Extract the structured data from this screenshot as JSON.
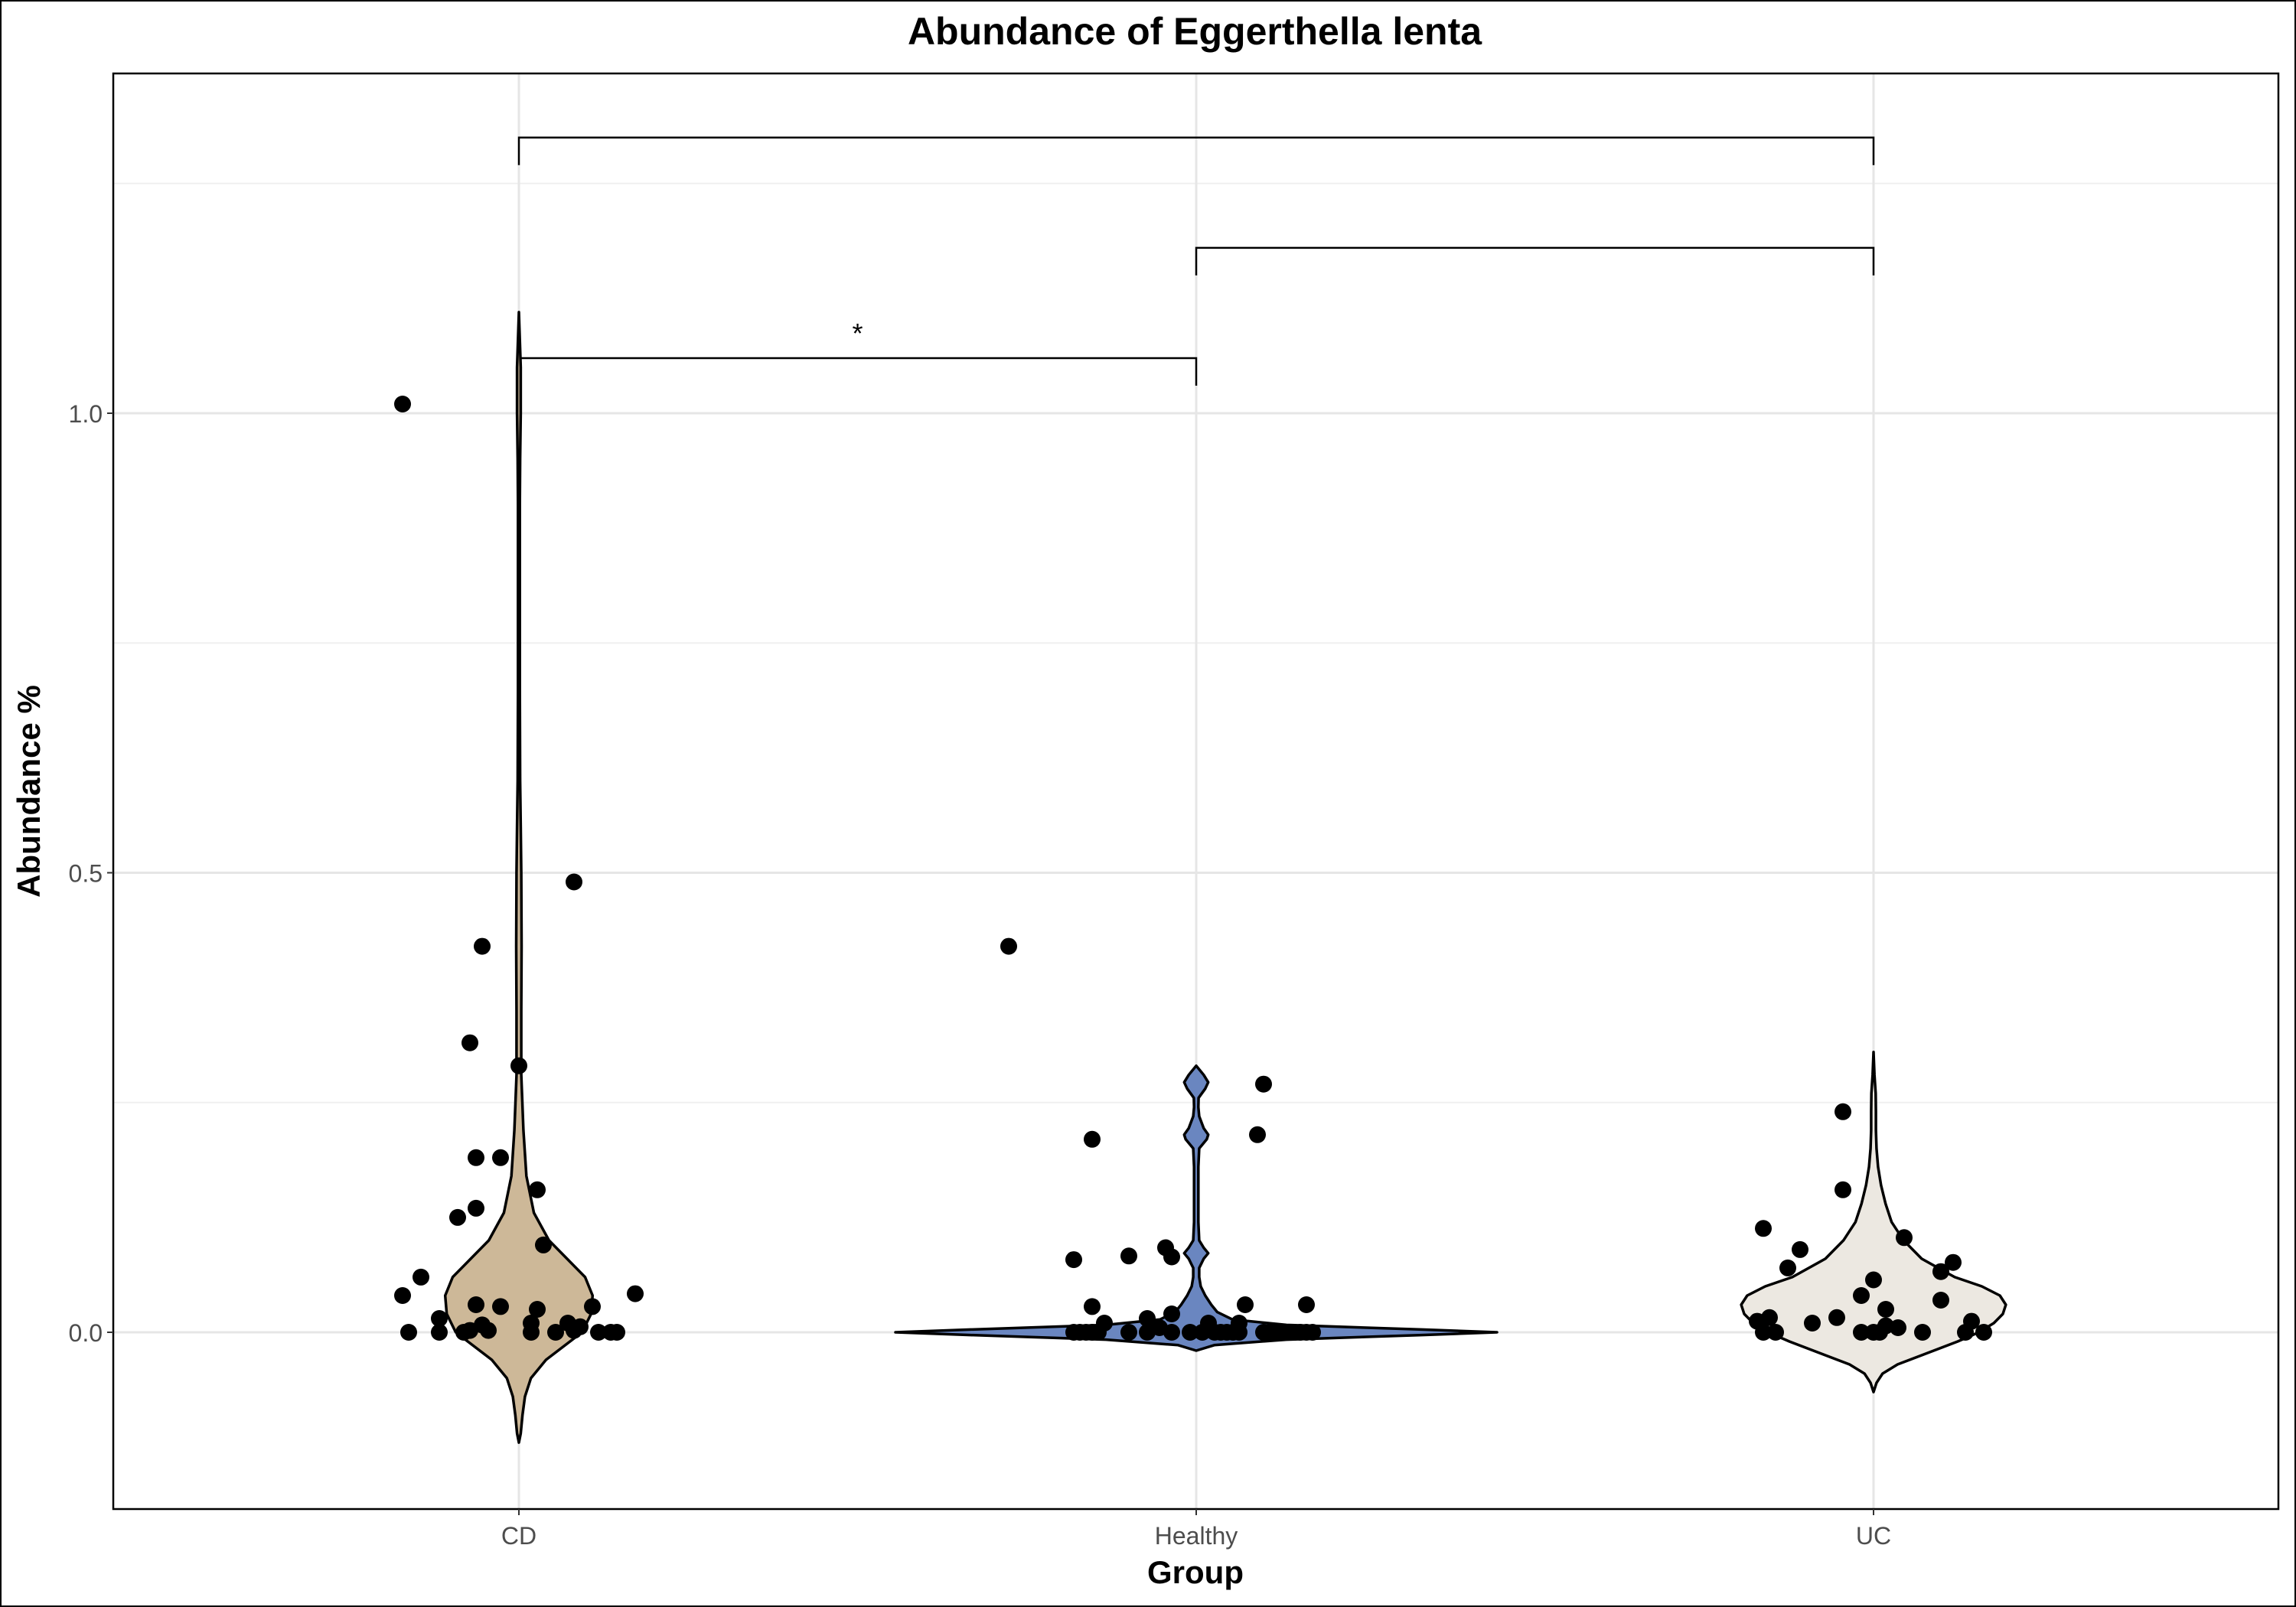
{
  "chart_data": {
    "type": "violin",
    "title": "Abundance of Eggerthella lenta",
    "xlabel": "Group",
    "ylabel": "Abundance %",
    "categories": [
      "CD",
      "Healthy",
      "UC"
    ],
    "ylim": [
      -0.19,
      1.37
    ],
    "yticks": [
      0.0,
      0.5,
      1.0
    ],
    "ytick_labels": [
      "0.0",
      "0.5",
      "1.0"
    ],
    "grid": true,
    "legend": "none",
    "colors": {
      "CD": "#cdb898",
      "Healthy": "#6a86c0",
      "UC": "#ece8e1"
    },
    "violins": [
      {
        "group": "CD",
        "profile": [
          [
            -0.12,
            0.0
          ],
          [
            -0.11,
            0.006
          ],
          [
            -0.09,
            0.012
          ],
          [
            -0.07,
            0.02
          ],
          [
            -0.05,
            0.04
          ],
          [
            -0.03,
            0.09
          ],
          [
            -0.01,
            0.17
          ],
          [
            0.0,
            0.21
          ],
          [
            0.02,
            0.24
          ],
          [
            0.04,
            0.245
          ],
          [
            0.06,
            0.22
          ],
          [
            0.08,
            0.16
          ],
          [
            0.1,
            0.1
          ],
          [
            0.13,
            0.05
          ],
          [
            0.17,
            0.025
          ],
          [
            0.22,
            0.015
          ],
          [
            0.28,
            0.008
          ],
          [
            0.35,
            0.008
          ],
          [
            0.42,
            0.009
          ],
          [
            0.5,
            0.008
          ],
          [
            0.55,
            0.006
          ],
          [
            0.6,
            0.004
          ],
          [
            0.7,
            0.003
          ],
          [
            0.8,
            0.003
          ],
          [
            0.9,
            0.003
          ],
          [
            0.95,
            0.004
          ],
          [
            1.0,
            0.006
          ],
          [
            1.05,
            0.006
          ],
          [
            1.09,
            0.002
          ],
          [
            1.11,
            0.0
          ]
        ]
      },
      {
        "group": "Healthy",
        "profile": [
          [
            -0.02,
            0.0
          ],
          [
            -0.014,
            0.06
          ],
          [
            -0.008,
            0.3
          ],
          [
            -0.003,
            0.75
          ],
          [
            0.0,
            1.0
          ],
          [
            0.003,
            0.75
          ],
          [
            0.008,
            0.3
          ],
          [
            0.014,
            0.12
          ],
          [
            0.022,
            0.07
          ],
          [
            0.03,
            0.05
          ],
          [
            0.04,
            0.03
          ],
          [
            0.05,
            0.015
          ],
          [
            0.06,
            0.01
          ],
          [
            0.07,
            0.01
          ],
          [
            0.08,
            0.025
          ],
          [
            0.086,
            0.04
          ],
          [
            0.092,
            0.025
          ],
          [
            0.1,
            0.01
          ],
          [
            0.12,
            0.007
          ],
          [
            0.15,
            0.007
          ],
          [
            0.18,
            0.007
          ],
          [
            0.2,
            0.01
          ],
          [
            0.21,
            0.035
          ],
          [
            0.215,
            0.04
          ],
          [
            0.222,
            0.025
          ],
          [
            0.235,
            0.01
          ],
          [
            0.245,
            0.007
          ],
          [
            0.255,
            0.008
          ],
          [
            0.265,
            0.03
          ],
          [
            0.272,
            0.04
          ],
          [
            0.28,
            0.025
          ],
          [
            0.29,
            0.0
          ]
        ]
      },
      {
        "group": "UC",
        "profile": [
          [
            -0.065,
            0.0
          ],
          [
            -0.055,
            0.01
          ],
          [
            -0.045,
            0.03
          ],
          [
            -0.035,
            0.08
          ],
          [
            -0.025,
            0.16
          ],
          [
            -0.01,
            0.28
          ],
          [
            0.0,
            0.35
          ],
          [
            0.01,
            0.4
          ],
          [
            0.02,
            0.43
          ],
          [
            0.03,
            0.44
          ],
          [
            0.04,
            0.42
          ],
          [
            0.05,
            0.36
          ],
          [
            0.06,
            0.27
          ],
          [
            0.08,
            0.16
          ],
          [
            0.1,
            0.1
          ],
          [
            0.12,
            0.06
          ],
          [
            0.14,
            0.04
          ],
          [
            0.16,
            0.025
          ],
          [
            0.18,
            0.015
          ],
          [
            0.2,
            0.01
          ],
          [
            0.22,
            0.008
          ],
          [
            0.24,
            0.008
          ],
          [
            0.26,
            0.007
          ],
          [
            0.28,
            0.003
          ],
          [
            0.305,
            0.0
          ]
        ]
      }
    ],
    "points": {
      "CD": [
        [
          -0.19,
          1.01
        ],
        [
          0.8,
          0.42
        ],
        [
          -0.06,
          0.42
        ],
        [
          0.09,
          0.49
        ],
        [
          0.0,
          0.29
        ],
        [
          -0.08,
          0.315
        ],
        [
          -0.03,
          0.19
        ],
        [
          -0.07,
          0.19
        ],
        [
          0.03,
          0.155
        ],
        [
          -0.07,
          0.135
        ],
        [
          -0.1,
          0.125
        ],
        [
          0.04,
          0.095
        ],
        [
          -0.16,
          0.06
        ],
        [
          -0.19,
          0.04
        ],
        [
          0.19,
          0.042
        ],
        [
          -0.13,
          0.015
        ],
        [
          -0.07,
          0.03
        ],
        [
          -0.03,
          0.028
        ],
        [
          0.03,
          0.025
        ],
        [
          0.12,
          0.028
        ],
        [
          -0.18,
          0.0
        ],
        [
          -0.13,
          0.0
        ],
        [
          -0.09,
          0.0
        ],
        [
          -0.08,
          0.002
        ],
        [
          -0.06,
          0.008
        ],
        [
          -0.05,
          0.002
        ],
        [
          0.02,
          0.01
        ],
        [
          0.02,
          0.0
        ],
        [
          0.06,
          0.0
        ],
        [
          0.08,
          0.01
        ],
        [
          0.09,
          0.002
        ],
        [
          0.1,
          0.006
        ],
        [
          0.13,
          0.0
        ],
        [
          0.15,
          0.0
        ],
        [
          0.16,
          0.0
        ]
      ],
      "Healthy": [
        [
          -0.17,
          0.21
        ],
        [
          0.11,
          0.27
        ],
        [
          0.1,
          0.215
        ],
        [
          -0.05,
          0.092
        ],
        [
          -0.04,
          0.082
        ],
        [
          -0.2,
          0.079
        ],
        [
          -0.11,
          0.083
        ],
        [
          -0.17,
          0.028
        ],
        [
          0.08,
          0.03
        ],
        [
          0.18,
          0.03
        ],
        [
          -0.15,
          0.01
        ],
        [
          -0.08,
          0.015
        ],
        [
          -0.04,
          0.02
        ],
        [
          0.02,
          0.01
        ],
        [
          0.07,
          0.01
        ],
        [
          -0.2,
          0.0
        ],
        [
          -0.19,
          0.0
        ],
        [
          -0.18,
          0.0
        ],
        [
          -0.17,
          0.0
        ],
        [
          -0.16,
          0.0
        ],
        [
          -0.11,
          0.0
        ],
        [
          -0.08,
          0.0
        ],
        [
          -0.06,
          0.005
        ],
        [
          -0.04,
          0.0
        ],
        [
          -0.01,
          0.0
        ],
        [
          0.01,
          0.0
        ],
        [
          0.03,
          0.0
        ],
        [
          0.04,
          0.0
        ],
        [
          0.05,
          0.0
        ],
        [
          0.06,
          0.0
        ],
        [
          0.07,
          0.0
        ],
        [
          0.11,
          0.0
        ],
        [
          0.12,
          0.0
        ],
        [
          0.13,
          0.0
        ],
        [
          0.14,
          0.0
        ],
        [
          0.15,
          0.0
        ],
        [
          0.16,
          0.0
        ],
        [
          0.17,
          0.0
        ],
        [
          0.18,
          0.0
        ],
        [
          0.19,
          0.0
        ]
      ],
      "UC": [
        [
          -0.05,
          0.24
        ],
        [
          -0.05,
          0.155
        ],
        [
          -0.18,
          0.113
        ],
        [
          -0.12,
          0.09
        ],
        [
          -0.14,
          0.07
        ],
        [
          0.05,
          0.103
        ],
        [
          0.11,
          0.066
        ],
        [
          0.13,
          0.076
        ],
        [
          0.0,
          0.057
        ],
        [
          -0.1,
          0.01
        ],
        [
          -0.06,
          0.016
        ],
        [
          -0.02,
          0.04
        ],
        [
          0.02,
          0.025
        ],
        [
          0.04,
          0.005
        ],
        [
          0.11,
          0.035
        ],
        [
          0.16,
          0.012
        ],
        [
          -0.19,
          0.012
        ],
        [
          -0.17,
          0.016
        ],
        [
          -0.18,
          0.0
        ],
        [
          -0.16,
          0.0
        ],
        [
          -0.02,
          0.0
        ],
        [
          0.0,
          0.0
        ],
        [
          0.01,
          0.0
        ],
        [
          0.02,
          0.007
        ],
        [
          0.08,
          0.0
        ],
        [
          0.15,
          0.0
        ],
        [
          0.18,
          0.0
        ]
      ]
    },
    "comparisons": [
      {
        "from": "CD",
        "to": "Healthy",
        "y": 1.06,
        "label": "*"
      },
      {
        "from": "Healthy",
        "to": "UC",
        "y": 1.18,
        "label": ""
      },
      {
        "from": "CD",
        "to": "UC",
        "y": 1.3,
        "label": ""
      }
    ]
  }
}
